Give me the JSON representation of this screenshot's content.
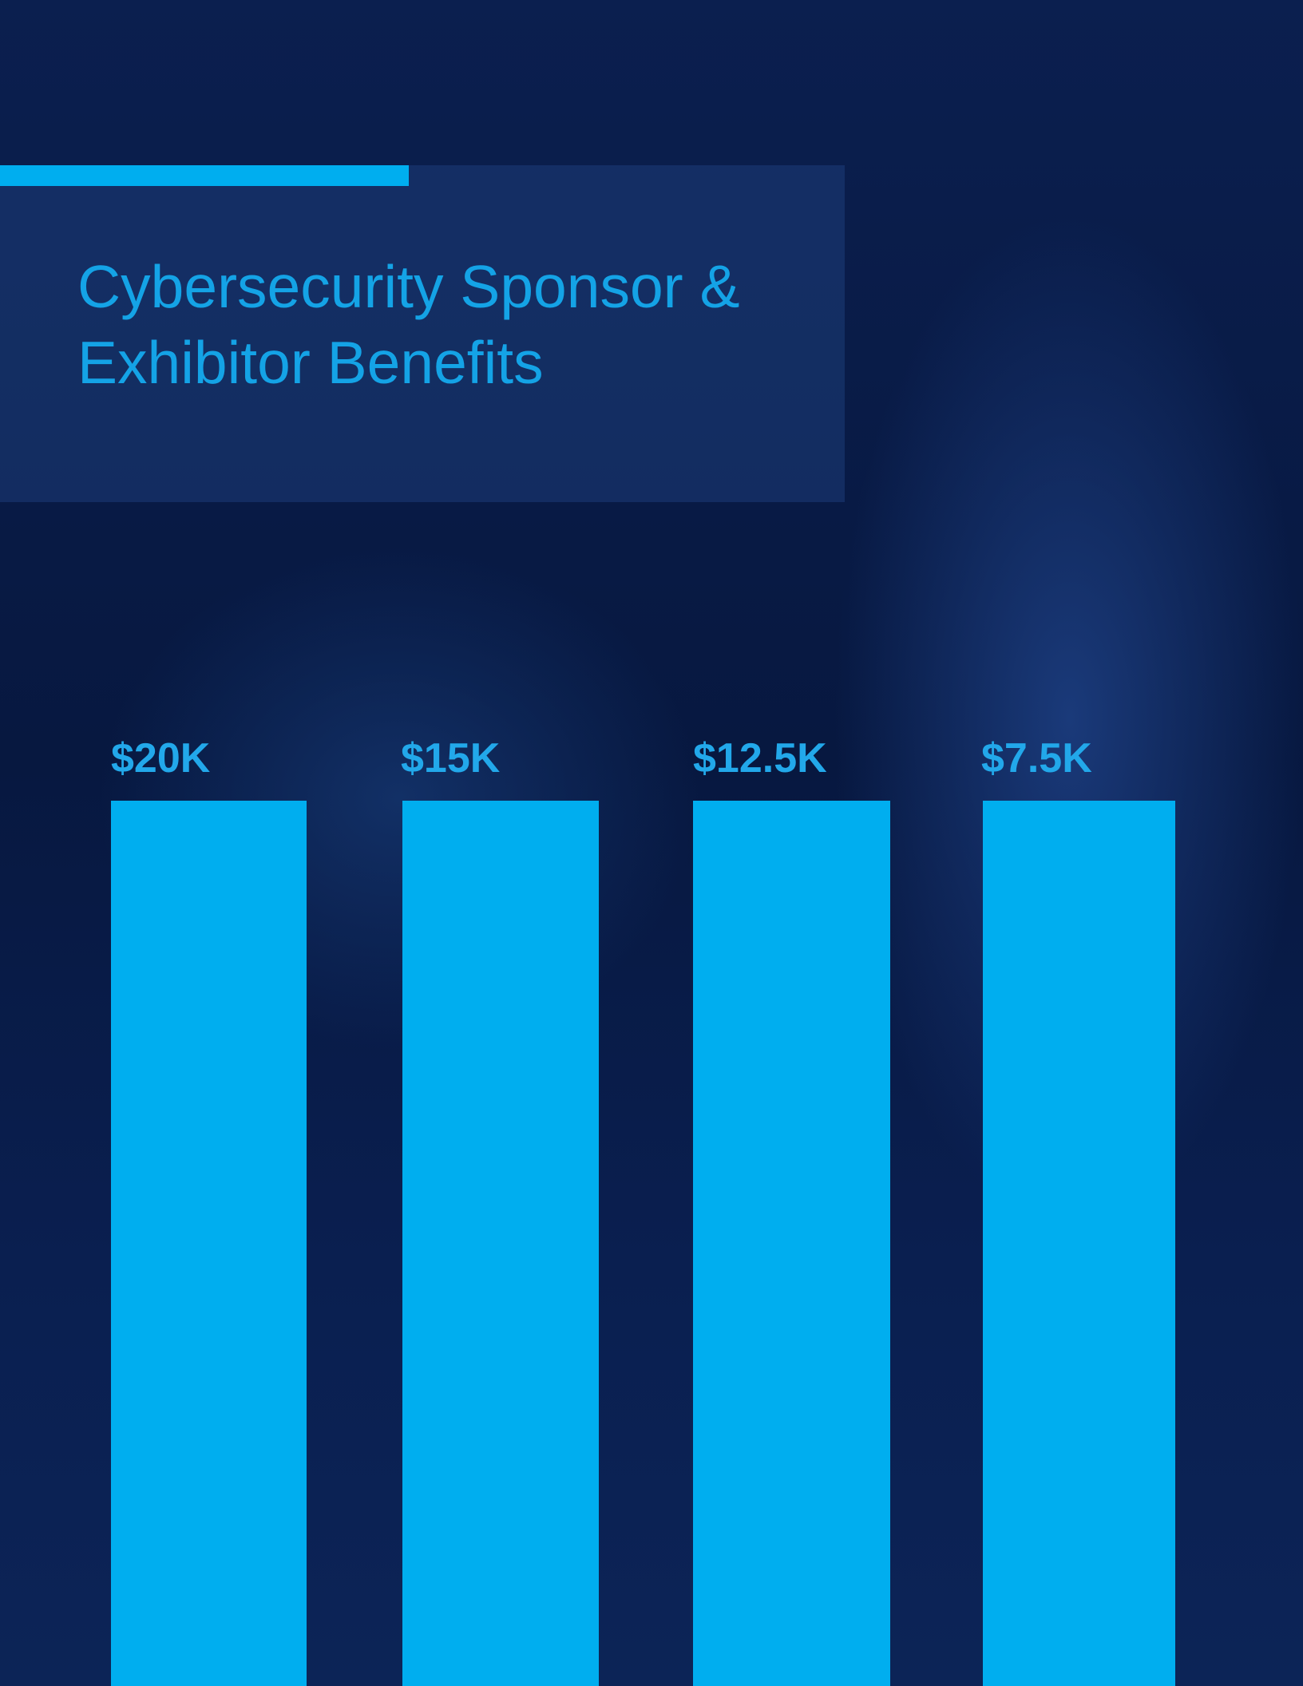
{
  "header": {
    "title_lines": [
      "Cybersecurity Sponsor &",
      "Exhibitor Benefits"
    ]
  },
  "tiers": [
    {
      "label": "$20K"
    },
    {
      "label": "$15K"
    },
    {
      "label": "$12.5K"
    },
    {
      "label": "$7.5K"
    }
  ]
}
